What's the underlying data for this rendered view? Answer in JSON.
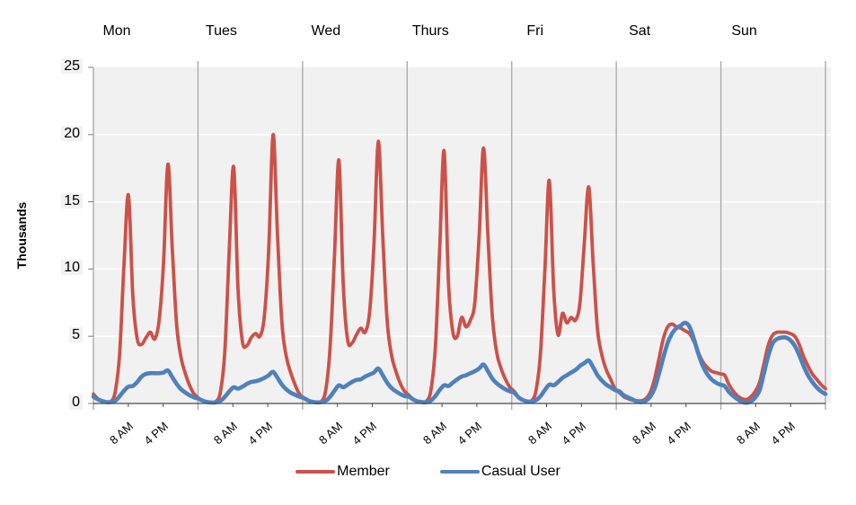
{
  "chart_data": {
    "type": "line",
    "title": "",
    "ylabel": "Thousands",
    "ylim": [
      0,
      25
    ],
    "yticks": [
      0,
      5,
      10,
      15,
      20,
      25
    ],
    "grid": {
      "horizontal": true,
      "color": "#FFFFFF"
    },
    "plot_background": "#F1F1F1",
    "day_separator_color": "#ACACAC",
    "axis_color": "#4A4A4A",
    "tick_color": "#7F7F7F",
    "legend_position": "bottom",
    "x_structure": {
      "days": [
        "Mon",
        "Tues",
        "Wed",
        "Thurs",
        "Fri",
        "Sat",
        "Sun"
      ],
      "points_per_day": 24,
      "hour_ticks": [
        {
          "hour": 8,
          "label": "8 AM"
        },
        {
          "hour": 16,
          "label": "4 PM"
        }
      ]
    },
    "series": [
      {
        "name": "Member",
        "color": "#CC5149",
        "values_by_day": [
          [
            0.7,
            0.35,
            0.2,
            0.1,
            0.15,
            0.9,
            3.8,
            10.5,
            15.5,
            8.0,
            4.8,
            4.4,
            4.9,
            5.3,
            4.8,
            6.2,
            10.5,
            17.8,
            11.5,
            5.8,
            3.4,
            2.2,
            1.3,
            0.7
          ],
          [
            0.4,
            0.2,
            0.12,
            0.08,
            0.15,
            0.9,
            4.0,
            11.5,
            17.6,
            8.5,
            4.6,
            4.3,
            4.9,
            5.2,
            5.0,
            6.5,
            11.5,
            20.0,
            12.5,
            6.0,
            3.5,
            2.3,
            1.4,
            0.7
          ],
          [
            0.4,
            0.2,
            0.12,
            0.08,
            0.15,
            1.0,
            4.2,
            11.0,
            18.1,
            8.8,
            4.7,
            4.5,
            5.1,
            5.6,
            5.3,
            6.8,
            11.8,
            19.5,
            12.5,
            6.2,
            3.6,
            2.4,
            1.5,
            0.9
          ],
          [
            0.6,
            0.3,
            0.15,
            0.1,
            0.18,
            1.0,
            4.2,
            11.5,
            18.8,
            9.0,
            5.3,
            5.0,
            6.4,
            5.7,
            6.2,
            7.5,
            12.5,
            19.0,
            12.5,
            6.5,
            3.8,
            2.6,
            1.8,
            1.2
          ],
          [
            0.9,
            0.45,
            0.25,
            0.15,
            0.2,
            1.0,
            3.8,
            10.0,
            16.6,
            8.5,
            5.1,
            6.7,
            6.0,
            6.4,
            6.2,
            7.5,
            12.0,
            16.1,
            10.5,
            5.5,
            3.6,
            2.5,
            1.8,
            1.1
          ],
          [
            0.8,
            0.5,
            0.35,
            0.25,
            0.2,
            0.2,
            0.35,
            0.8,
            1.8,
            3.3,
            4.8,
            5.7,
            5.9,
            5.7,
            5.6,
            5.4,
            5.2,
            4.6,
            3.8,
            3.1,
            2.7,
            2.4,
            2.3,
            2.2
          ],
          [
            2.1,
            1.4,
            0.9,
            0.55,
            0.35,
            0.3,
            0.5,
            0.9,
            1.6,
            3.0,
            4.4,
            5.1,
            5.3,
            5.3,
            5.3,
            5.2,
            5.0,
            4.4,
            3.5,
            2.8,
            2.2,
            1.8,
            1.4,
            1.1
          ]
        ]
      },
      {
        "name": "Casual User",
        "color": "#4E81BD",
        "values_by_day": [
          [
            0.5,
            0.3,
            0.18,
            0.1,
            0.1,
            0.2,
            0.55,
            0.95,
            1.25,
            1.3,
            1.6,
            2.0,
            2.2,
            2.25,
            2.25,
            2.25,
            2.3,
            2.45,
            1.95,
            1.45,
            1.05,
            0.8,
            0.6,
            0.45
          ],
          [
            0.35,
            0.2,
            0.1,
            0.07,
            0.08,
            0.2,
            0.5,
            0.9,
            1.2,
            1.1,
            1.25,
            1.45,
            1.6,
            1.65,
            1.75,
            1.9,
            2.1,
            2.35,
            1.9,
            1.4,
            1.05,
            0.8,
            0.65,
            0.5
          ],
          [
            0.4,
            0.22,
            0.12,
            0.08,
            0.1,
            0.2,
            0.5,
            0.95,
            1.35,
            1.2,
            1.4,
            1.6,
            1.75,
            1.8,
            2.0,
            2.15,
            2.3,
            2.6,
            2.1,
            1.55,
            1.15,
            0.9,
            0.7,
            0.55
          ],
          [
            0.5,
            0.28,
            0.15,
            0.1,
            0.1,
            0.22,
            0.55,
            1.0,
            1.35,
            1.3,
            1.55,
            1.8,
            2.0,
            2.1,
            2.25,
            2.4,
            2.6,
            2.9,
            2.4,
            1.85,
            1.5,
            1.25,
            1.05,
            0.9
          ],
          [
            0.8,
            0.45,
            0.25,
            0.15,
            0.15,
            0.25,
            0.55,
            1.0,
            1.4,
            1.35,
            1.6,
            1.9,
            2.1,
            2.3,
            2.5,
            2.8,
            3.0,
            3.2,
            2.7,
            2.1,
            1.7,
            1.4,
            1.2,
            1.0
          ],
          [
            0.9,
            0.6,
            0.45,
            0.3,
            0.15,
            0.1,
            0.2,
            0.5,
            1.1,
            2.2,
            3.4,
            4.5,
            5.2,
            5.6,
            5.8,
            6.0,
            5.7,
            4.8,
            3.7,
            2.8,
            2.2,
            1.8,
            1.55,
            1.4
          ],
          [
            1.3,
            0.85,
            0.55,
            0.3,
            0.1,
            0.05,
            0.15,
            0.45,
            1.0,
            2.3,
            3.6,
            4.5,
            4.8,
            4.9,
            4.9,
            4.7,
            4.3,
            3.6,
            2.8,
            2.1,
            1.6,
            1.2,
            0.9,
            0.7
          ]
        ]
      }
    ]
  }
}
